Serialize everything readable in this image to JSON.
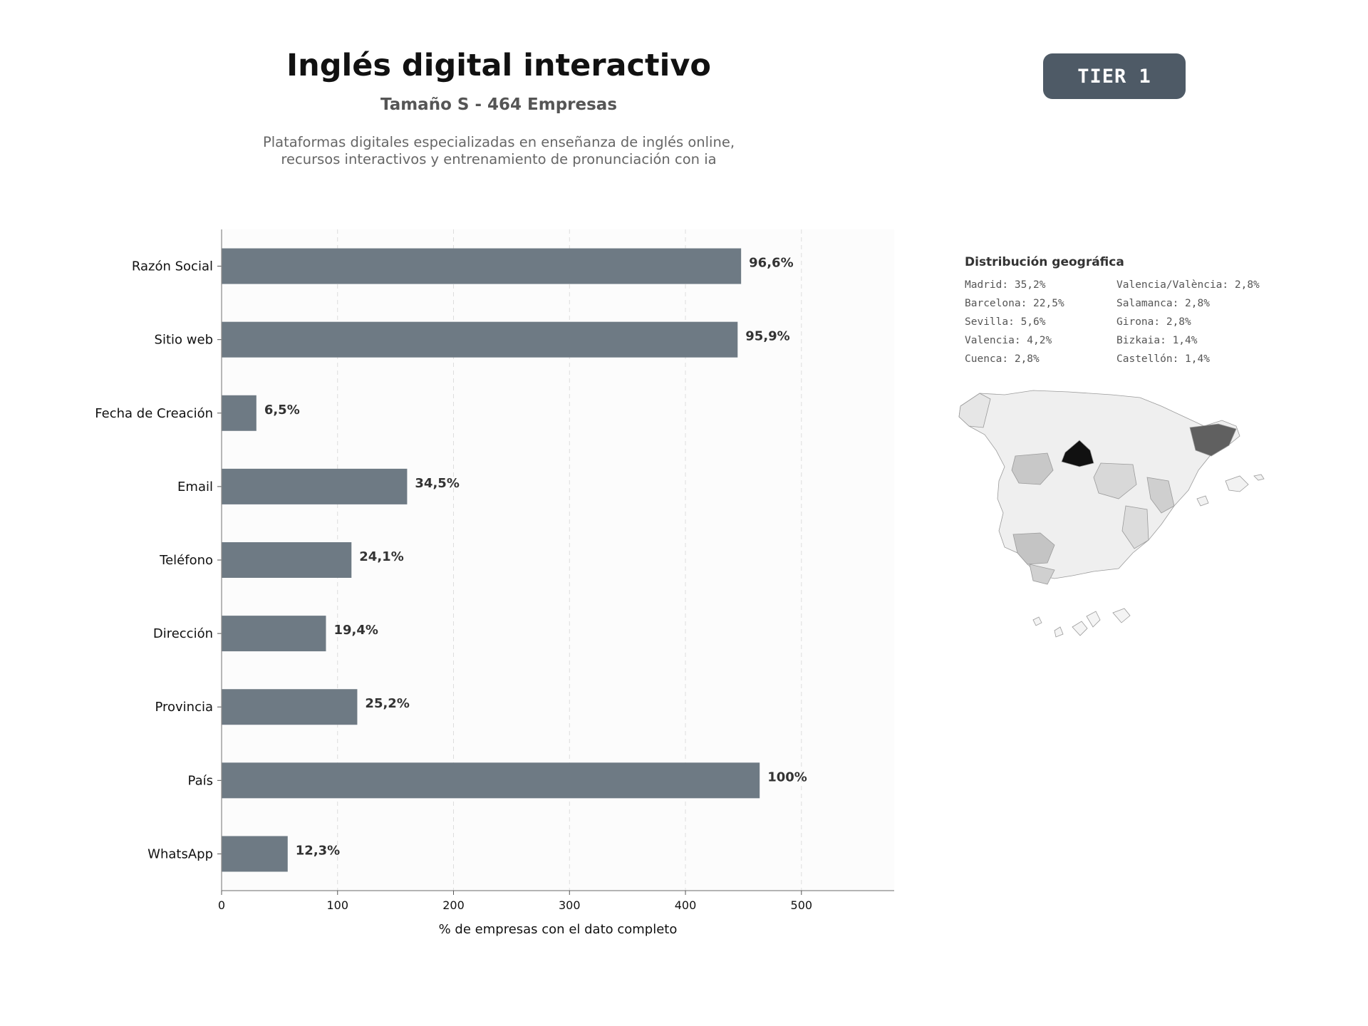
{
  "header": {
    "title": "Inglés digital interactivo",
    "subtitle": "Tamaño S - 464 Empresas",
    "description_lines": [
      "Plataformas digitales especializadas en enseñanza de inglés online,",
      "recursos interactivos y entrenamiento de pronunciación con ia"
    ]
  },
  "badge": {
    "label": "TIER 1",
    "color": "#4e5a66"
  },
  "chart_data": {
    "type": "bar",
    "orientation": "horizontal",
    "categories": [
      "Razón Social",
      "Sitio web",
      "Fecha de Creación",
      "Email",
      "Teléfono",
      "Dirección",
      "Provincia",
      "País",
      "WhatsApp"
    ],
    "values": [
      448,
      445,
      30,
      160,
      112,
      90,
      117,
      464,
      57
    ],
    "value_labels": [
      "96,6%",
      "95,9%",
      "6,5%",
      "34,5%",
      "24,1%",
      "19,4%",
      "25,2%",
      "100%",
      "12,3%"
    ],
    "xlabel": "% de empresas con el dato completo",
    "ylabel": "",
    "xlim": [
      0,
      580
    ],
    "xticks": [
      0,
      100,
      200,
      300,
      400,
      500
    ],
    "grid": true,
    "bar_color": "#6e7a84"
  },
  "geo": {
    "title": "Distribución geográfica",
    "items": [
      "Madrid: 35,2%",
      "Valencia/València: 2,8%",
      "Barcelona: 22,5%",
      "Salamanca: 2,8%",
      "Sevilla: 5,6%",
      "Girona: 2,8%",
      "Valencia: 4,2%",
      "Bizkaia: 1,4%",
      "Cuenca: 2,8%",
      "Castellón: 1,4%"
    ],
    "map_icon": "spain-provinces-map"
  }
}
